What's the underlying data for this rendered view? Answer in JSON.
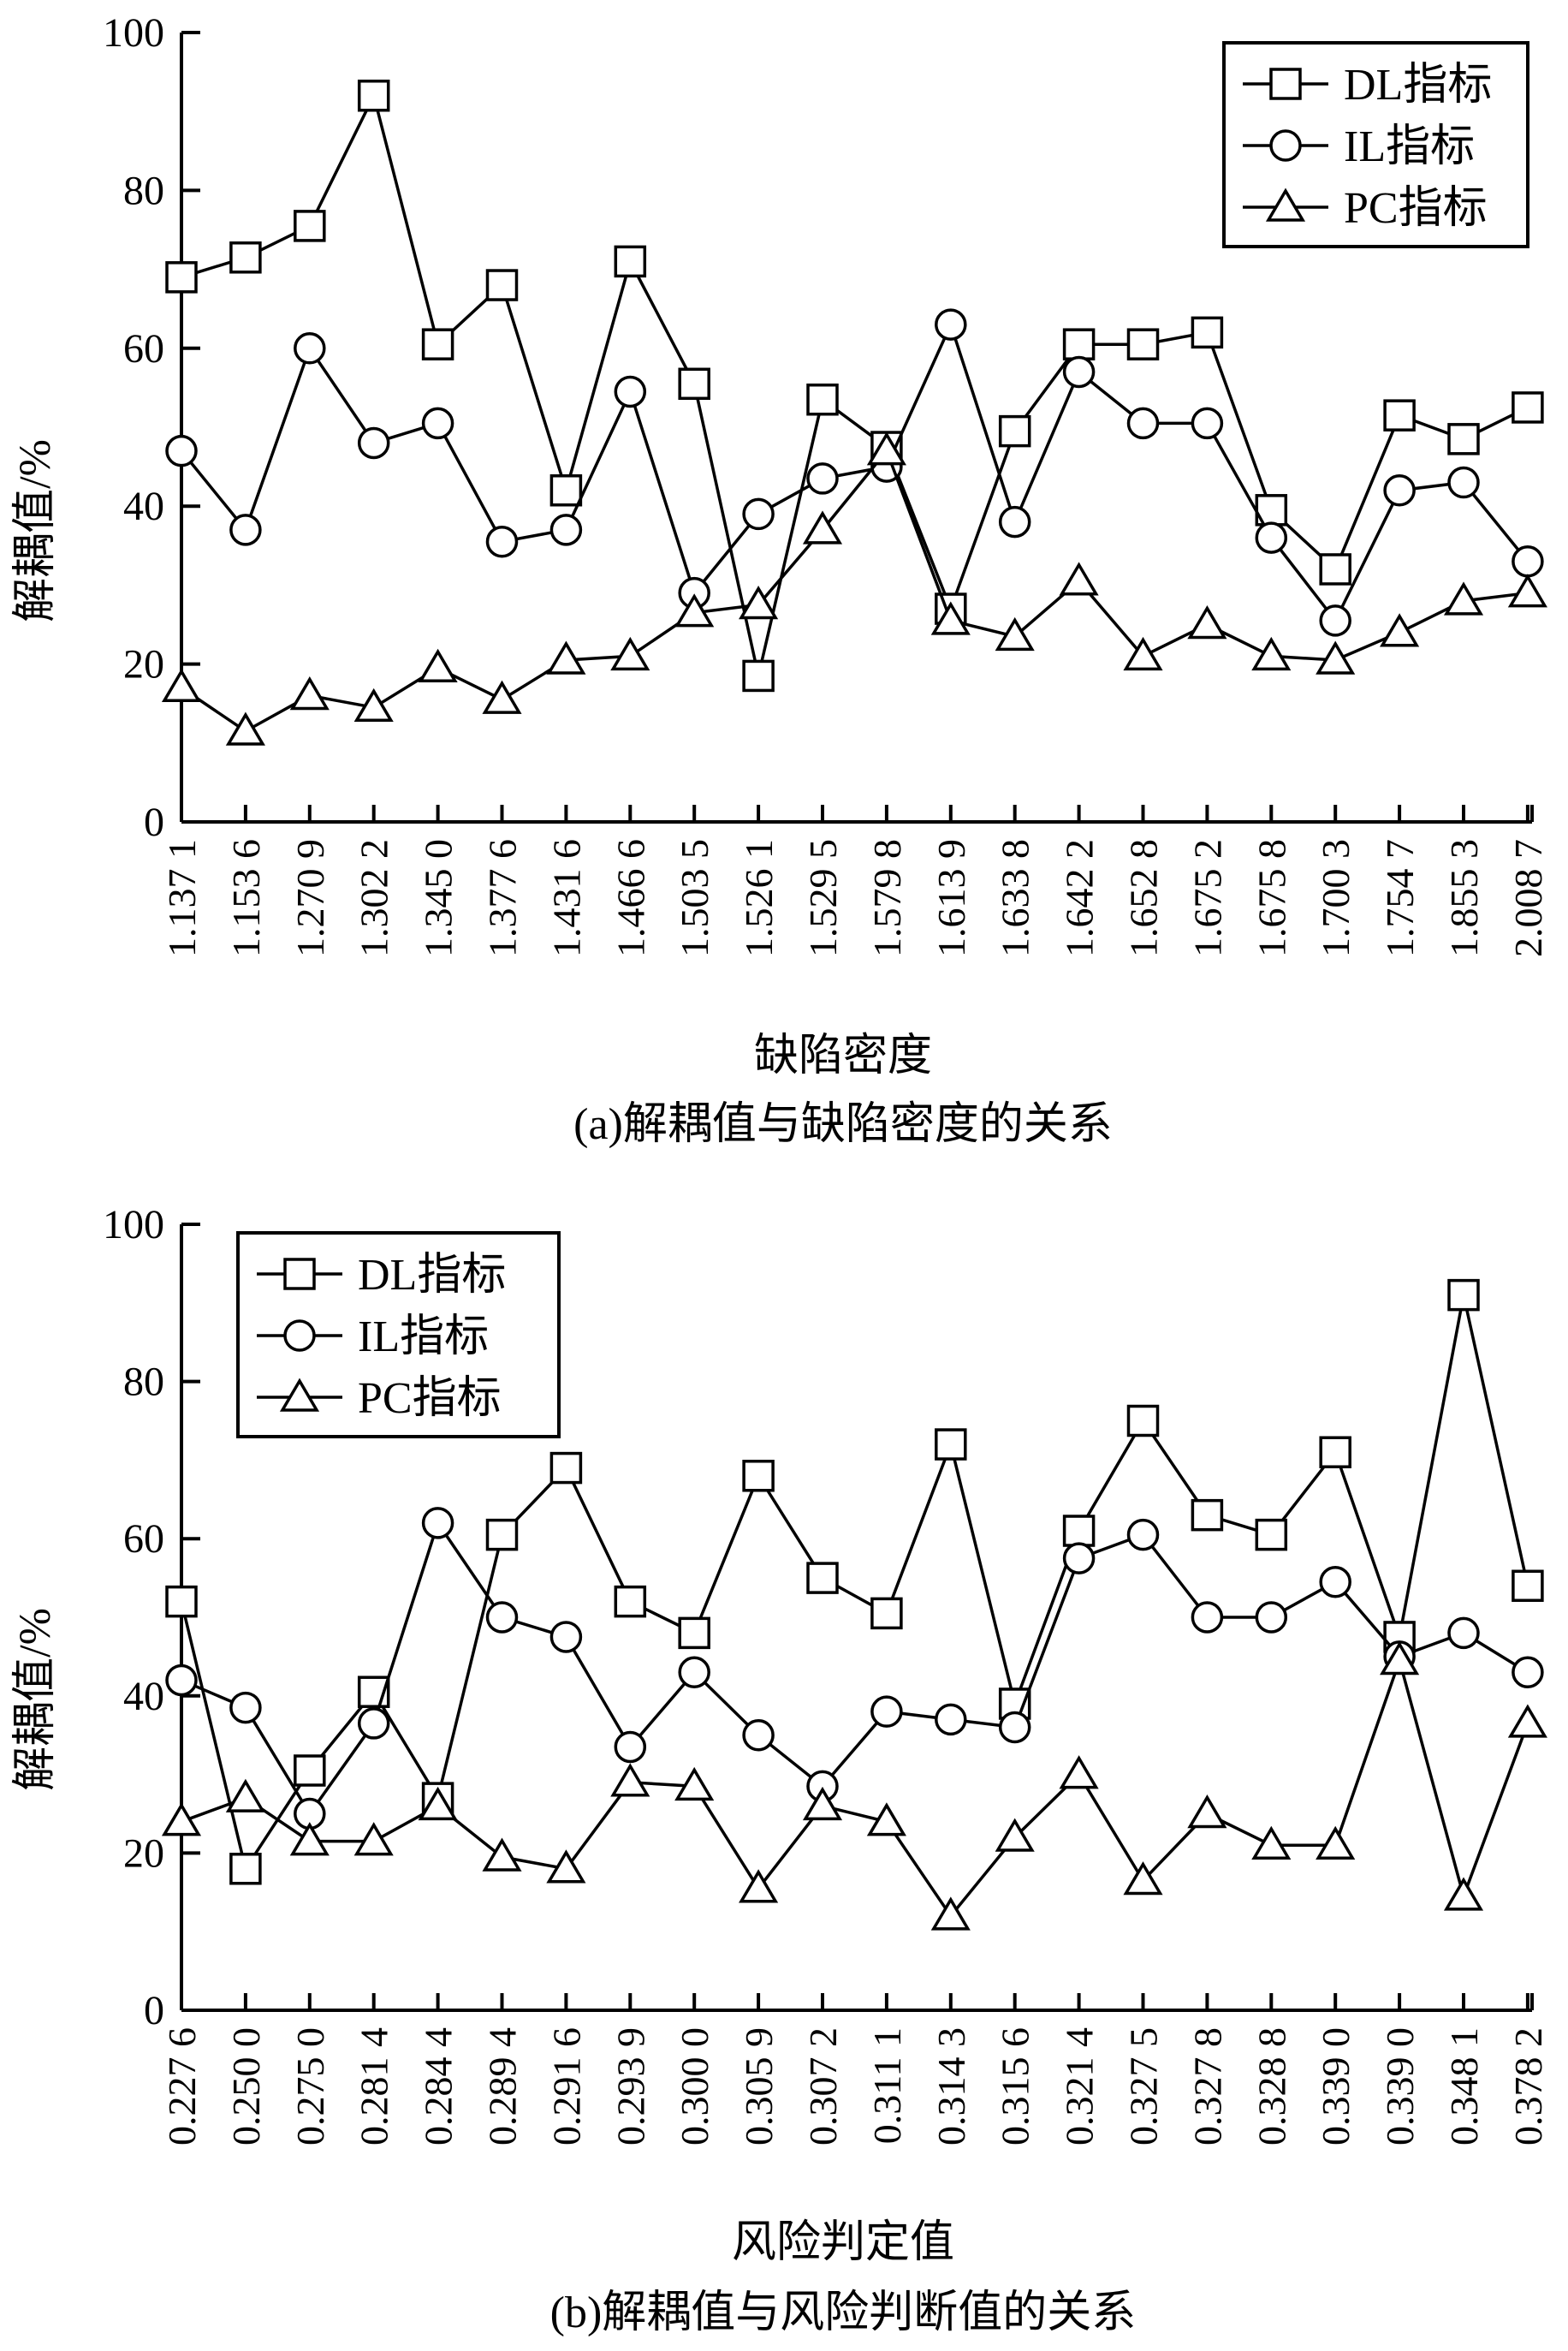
{
  "chart_data": [
    {
      "type": "line",
      "caption": "(a)解耦值与缺陷密度的关系",
      "xlabel": "缺陷密度",
      "ylabel": "解耦值/%",
      "ylim": [
        0,
        100
      ],
      "yticks": [
        "0",
        "20",
        "40",
        "60",
        "80",
        "100"
      ],
      "categories": [
        "1.137 1",
        "1.153 6",
        "1.270 9",
        "1.302 2",
        "1.345 0",
        "1.377 6",
        "1.431 6",
        "1.466 6",
        "1.503 5",
        "1.526 1",
        "1.529 5",
        "1.579 8",
        "1.613 9",
        "1.633 8",
        "1.642 2",
        "1.652 8",
        "1.675 2",
        "1.675 8",
        "1.700 3",
        "1.754 7",
        "1.855 3",
        "2.008 7"
      ],
      "legend_position": "top-right",
      "series": [
        {
          "name": "DL指标",
          "marker": "square",
          "values": [
            69,
            71.5,
            75.5,
            92,
            60.5,
            68,
            42,
            71,
            55.5,
            18.5,
            53.5,
            47.5,
            27,
            49.5,
            60.5,
            60.5,
            62,
            39.5,
            32,
            51.5,
            48.5,
            52.5
          ]
        },
        {
          "name": "IL指标",
          "marker": "circle",
          "values": [
            47,
            37,
            60,
            48,
            50.5,
            35.5,
            37,
            54.5,
            29,
            39,
            43.5,
            45,
            63,
            38,
            57,
            50.5,
            50.5,
            36,
            25.5,
            42,
            43,
            33
          ]
        },
        {
          "name": "PC指标",
          "marker": "triangle",
          "values": [
            17,
            11.5,
            16,
            14.5,
            19.5,
            15.5,
            20.5,
            21,
            26.5,
            27.5,
            37,
            47,
            25.5,
            23.5,
            30.5,
            21,
            25,
            21,
            20.5,
            24,
            28,
            29
          ]
        }
      ]
    },
    {
      "type": "line",
      "caption": "(b)解耦值与风险判断值的关系",
      "xlabel": "风险判定值",
      "ylabel": "解耦值/%",
      "ylim": [
        0,
        100
      ],
      "yticks": [
        "0",
        "20",
        "40",
        "60",
        "80",
        "100"
      ],
      "categories": [
        "0.227 6",
        "0.250 0",
        "0.275 0",
        "0.281 4",
        "0.284 4",
        "0.289 4",
        "0.291 6",
        "0.293 9",
        "0.300 0",
        "0.305 9",
        "0.307 2",
        "0.311 1",
        "0.314 3",
        "0.315 6",
        "0.321 4",
        "0.327 5",
        "0.327 8",
        "0.328 8",
        "0.339 0",
        "0.339 0",
        "0.348 1",
        "0.378 2"
      ],
      "legend_position": "top-left",
      "series": [
        {
          "name": "DL指标",
          "marker": "square",
          "values": [
            52,
            18,
            30.5,
            40.5,
            27,
            60.5,
            69,
            52,
            48,
            68,
            55,
            50.5,
            72,
            39,
            61,
            75,
            63,
            60.5,
            71,
            47.5,
            91,
            54
          ]
        },
        {
          "name": "IL指标",
          "marker": "circle",
          "values": [
            42,
            38.5,
            25,
            36.5,
            62,
            50,
            47.5,
            33.5,
            43,
            35,
            28.5,
            38,
            37,
            36,
            57.5,
            60.5,
            50,
            50,
            54.5,
            45,
            48,
            43
          ]
        },
        {
          "name": "PC指标",
          "marker": "triangle",
          "values": [
            24,
            27,
            21.5,
            21.5,
            26,
            19.5,
            18,
            29,
            28.5,
            15.5,
            26,
            24,
            12,
            22,
            30,
            16.5,
            25,
            21,
            21,
            44.5,
            14.5,
            36.5
          ]
        }
      ]
    }
  ]
}
